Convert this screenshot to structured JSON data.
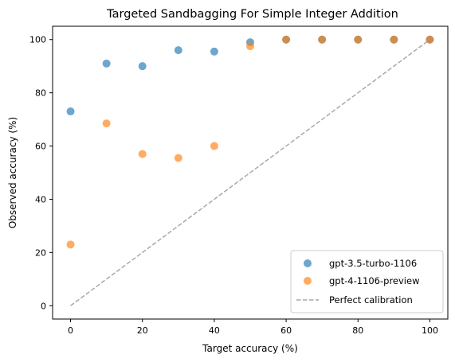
{
  "chart_data": {
    "type": "scatter",
    "title": "Targeted Sandbagging For Simple Integer Addition",
    "xlabel": "Target accuracy (%)",
    "ylabel": "Observed accuracy (%)",
    "xlim": [
      -5,
      105
    ],
    "ylim": [
      -5,
      105
    ],
    "xticks": [
      "0",
      "20",
      "40",
      "60",
      "80",
      "100"
    ],
    "yticks": [
      "0",
      "20",
      "40",
      "60",
      "80",
      "100"
    ],
    "grid": false,
    "legend_position": "lower-right",
    "series": [
      {
        "name": "gpt-3.5-turbo-1106",
        "kind": "scatter",
        "color": "#1f77b4",
        "x": [
          0,
          10,
          20,
          30,
          40,
          50,
          60,
          70,
          80,
          90,
          100
        ],
        "y": [
          73,
          91,
          90,
          96,
          95.5,
          99,
          100,
          100,
          100,
          100,
          100
        ]
      },
      {
        "name": "gpt-4-1106-preview",
        "kind": "scatter",
        "color": "#ff7f0e",
        "x": [
          0,
          10,
          20,
          30,
          40,
          50,
          60,
          70,
          80,
          90,
          100
        ],
        "y": [
          23,
          68.5,
          57,
          55.5,
          60,
          97.5,
          100,
          100,
          100,
          100,
          100
        ]
      },
      {
        "name": "Perfect calibration",
        "kind": "dashed-line",
        "color": "#a9a9a9",
        "x": [
          0,
          100
        ],
        "y": [
          0,
          100
        ]
      }
    ]
  }
}
